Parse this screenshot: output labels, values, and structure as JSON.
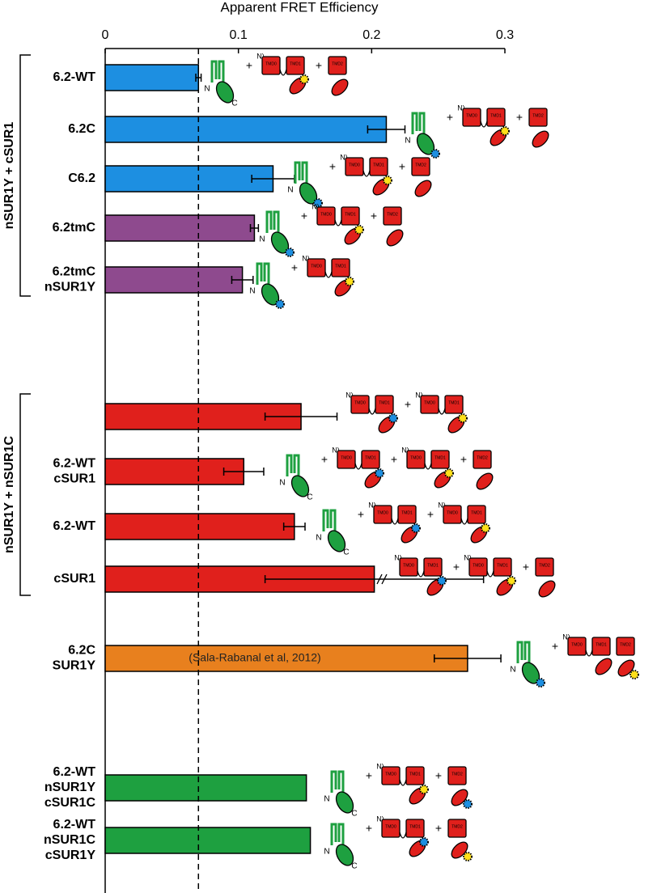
{
  "chart_data": {
    "type": "bar",
    "orientation": "horizontal",
    "x_axis_label": "Apparent FRET Efficiency",
    "xlim": [
      0,
      0.3
    ],
    "xticks": [
      0,
      0.1,
      0.2,
      0.3
    ],
    "categories": [
      [
        "6.2-WT"
      ],
      [
        "6.2C"
      ],
      [
        "C6.2"
      ],
      [
        "6.2tmC"
      ],
      [
        "6.2tmC",
        "nSUR1Y"
      ],
      null,
      [
        "6.2-WT",
        "cSUR1"
      ],
      [
        "6.2-WT"
      ],
      [
        "cSUR1"
      ],
      [
        "6.2C",
        "SUR1Y"
      ],
      [
        "6.2-WT",
        "nSUR1Y",
        "cSUR1C"
      ],
      [
        "6.2-WT",
        "nSUR1C",
        "cSUR1Y"
      ]
    ],
    "values": [
      0.07,
      0.211,
      0.126,
      0.112,
      0.103,
      0.147,
      0.104,
      0.142,
      0.202,
      0.272,
      0.151,
      0.154
    ],
    "errors": [
      0.002,
      0.014,
      0.016,
      0.003,
      0.008,
      0.027,
      0.015,
      0.008,
      0.082,
      0.025,
      null,
      null
    ],
    "colors": [
      "#1d8fe1",
      "#1d8fe1",
      "#1d8fe1",
      "#8e4a8e",
      "#8e4a8e",
      "#e0201c",
      "#e0201c",
      "#e0201c",
      "#e0201c",
      "#e8801e",
      "#1ea040",
      "#1ea040"
    ],
    "groups": [
      {
        "label": "nSUR1Y + cSUR1",
        "first": 0,
        "last": 4
      },
      {
        "label": "nSUR1Y + nSUR1C",
        "first": 5,
        "last": 8
      }
    ],
    "annotation": {
      "text": "(Sala-Rabanal et al, 2012)",
      "index": 9
    },
    "reference_line": 0.07,
    "schematic_labels": {
      "tmd": [
        "TMD0",
        "TMD1",
        "TMD2"
      ],
      "n": "N",
      "c": "C",
      "n_end": "N)",
      "plus": "+"
    }
  }
}
